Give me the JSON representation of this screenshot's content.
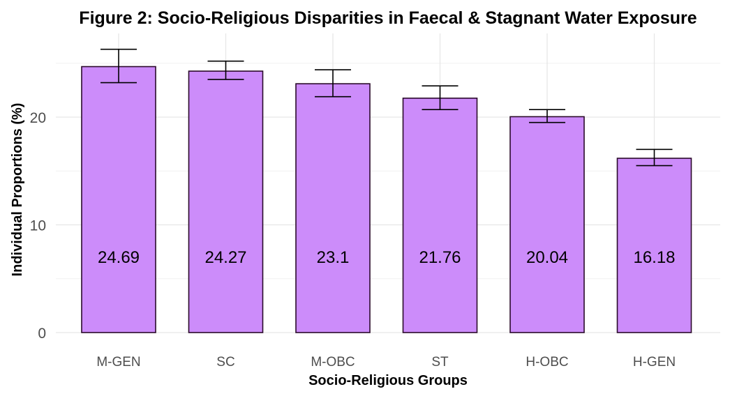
{
  "chart_data": {
    "type": "bar",
    "title": "Figure 2: Socio-Religious Disparities in Faecal & Stagnant Water Exposure",
    "xlabel": "Socio-Religious Groups",
    "ylabel": "Individual Proportions (%)",
    "categories": [
      "M-GEN",
      "SC",
      "M-OBC",
      "ST",
      "H-OBC",
      "H-GEN"
    ],
    "values": [
      24.69,
      24.27,
      23.1,
      21.76,
      20.04,
      16.18
    ],
    "labels": [
      "24.69",
      "24.27",
      "23.1",
      "21.76",
      "20.04",
      "16.18"
    ],
    "error_low": [
      23.2,
      23.5,
      21.9,
      20.7,
      19.5,
      15.5
    ],
    "error_high": [
      26.3,
      25.2,
      24.4,
      22.9,
      20.7,
      17.0
    ],
    "ylim": [
      0,
      26.5
    ],
    "yticks": [
      0,
      10,
      20
    ],
    "grid": true,
    "legend": "none",
    "colors": {
      "bar_fill": "#cc8cfa",
      "bar_edge": "#2a0a2a"
    }
  }
}
